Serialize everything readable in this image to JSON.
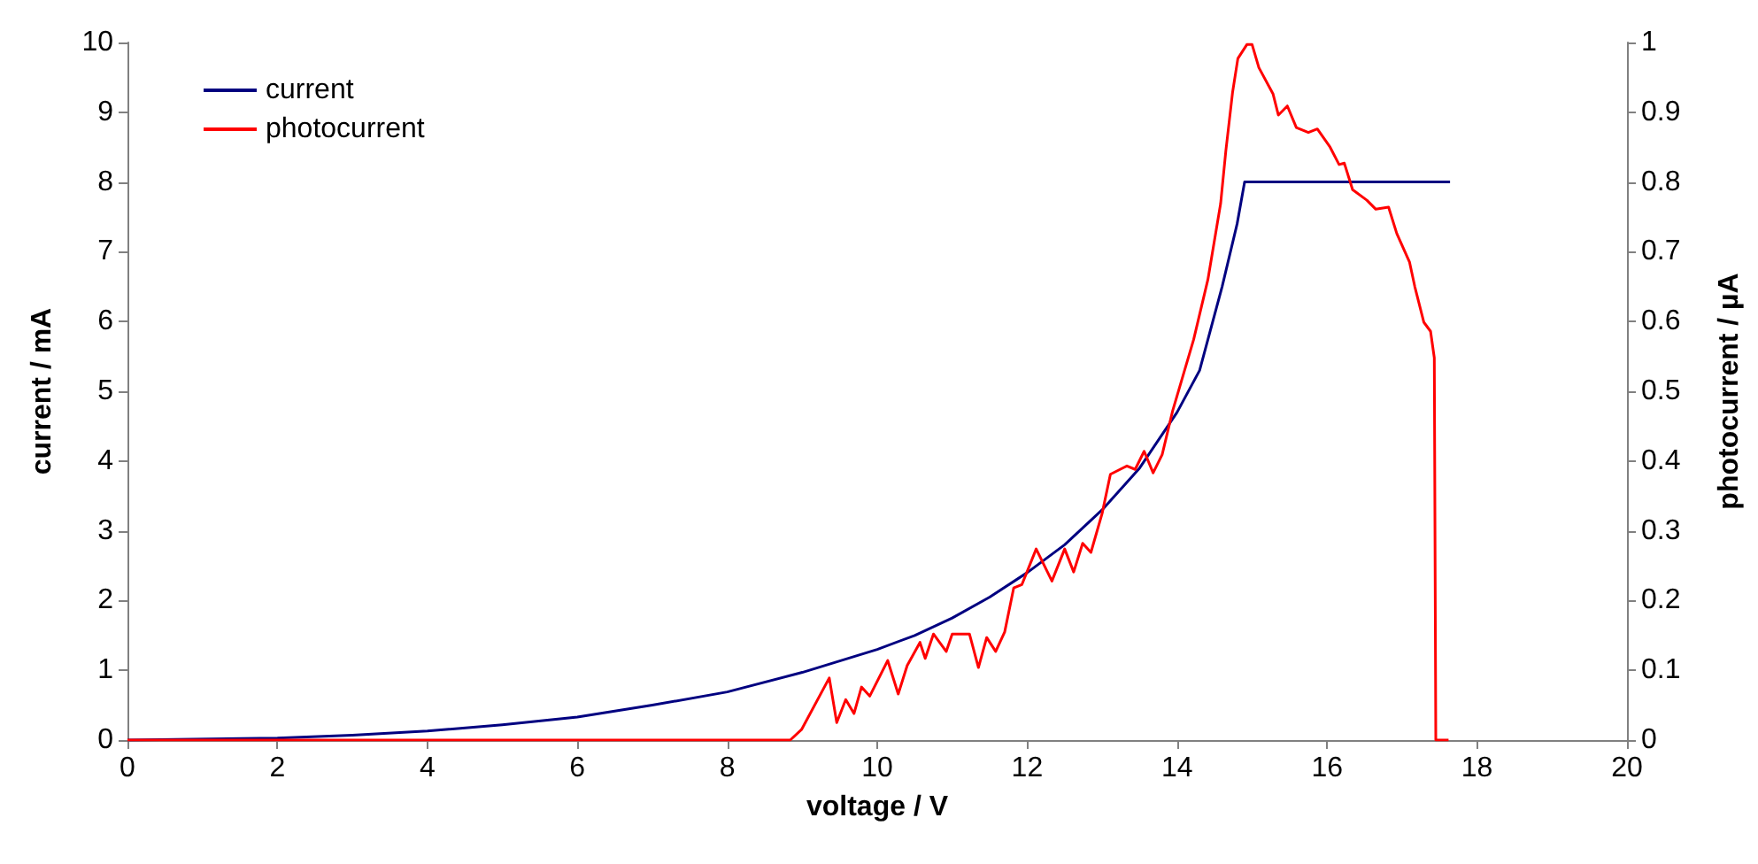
{
  "chart_data": {
    "type": "line",
    "xlabel": "voltage / V",
    "ylabel": "current / mA",
    "y2label": "photocurrent / µA",
    "xlim": [
      0,
      20
    ],
    "xticks": [
      0,
      2,
      4,
      6,
      8,
      10,
      12,
      14,
      16,
      18,
      20
    ],
    "ylim": [
      0,
      10
    ],
    "yticks": [
      0,
      1,
      2,
      3,
      4,
      5,
      6,
      7,
      8,
      9,
      10
    ],
    "y2lim": [
      0,
      1
    ],
    "y2ticks": [
      0,
      0.1,
      0.2,
      0.3,
      0.4,
      0.5,
      0.6,
      0.7,
      0.8,
      0.9,
      1
    ],
    "grid": false,
    "legend": "top left",
    "marker": "none",
    "line_style": "solid",
    "series": [
      {
        "name": "current",
        "color": "#000080",
        "x": [
          0,
          2,
          3,
          4,
          5,
          6,
          7,
          8,
          9,
          10,
          10.5,
          11,
          11.5,
          12,
          12.5,
          13,
          13.5,
          14,
          14.3,
          14.6,
          14.8,
          14.9,
          17.64
        ],
        "values": [
          0,
          0.03,
          0.07,
          0.13,
          0.22,
          0.33,
          0.5,
          0.69,
          0.97,
          1.3,
          1.5,
          1.75,
          2.05,
          2.4,
          2.8,
          3.3,
          3.9,
          4.7,
          5.3,
          6.5,
          7.4,
          8.0,
          8.0
        ]
      },
      {
        "name": "photocurrent",
        "color": "#ff0000",
        "axis": "y2",
        "x": [
          0,
          8.84,
          8.99,
          9.36,
          9.46,
          9.58,
          9.69,
          9.79,
          9.9,
          10.14,
          10.28,
          10.4,
          10.57,
          10.64,
          10.75,
          10.92,
          11.0,
          11.23,
          11.35,
          11.46,
          11.58,
          11.7,
          11.82,
          11.93,
          12.12,
          12.33,
          12.5,
          12.62,
          12.74,
          12.85,
          13.0,
          13.11,
          13.33,
          13.44,
          13.56,
          13.68,
          13.8,
          13.94,
          14.22,
          14.41,
          14.58,
          14.65,
          14.74,
          14.81,
          14.93,
          15.0,
          15.09,
          15.28,
          15.35,
          15.47,
          15.59,
          15.75,
          15.87,
          16.04,
          16.16,
          16.23,
          16.34,
          16.53,
          16.65,
          16.82,
          16.93,
          17.1,
          17.17,
          17.29,
          17.38,
          17.43,
          17.45,
          17.62
        ],
        "values": [
          0,
          0,
          0.015,
          0.089,
          0.025,
          0.058,
          0.038,
          0.076,
          0.063,
          0.114,
          0.066,
          0.107,
          0.14,
          0.117,
          0.152,
          0.127,
          0.152,
          0.152,
          0.104,
          0.147,
          0.127,
          0.155,
          0.218,
          0.223,
          0.274,
          0.228,
          0.274,
          0.241,
          0.282,
          0.269,
          0.325,
          0.381,
          0.393,
          0.388,
          0.414,
          0.383,
          0.409,
          0.472,
          0.574,
          0.66,
          0.769,
          0.845,
          0.929,
          0.977,
          0.997,
          0.997,
          0.964,
          0.926,
          0.896,
          0.909,
          0.878,
          0.871,
          0.876,
          0.85,
          0.825,
          0.827,
          0.789,
          0.774,
          0.761,
          0.764,
          0.726,
          0.685,
          0.65,
          0.599,
          0.586,
          0.548,
          0,
          0
        ]
      }
    ]
  }
}
